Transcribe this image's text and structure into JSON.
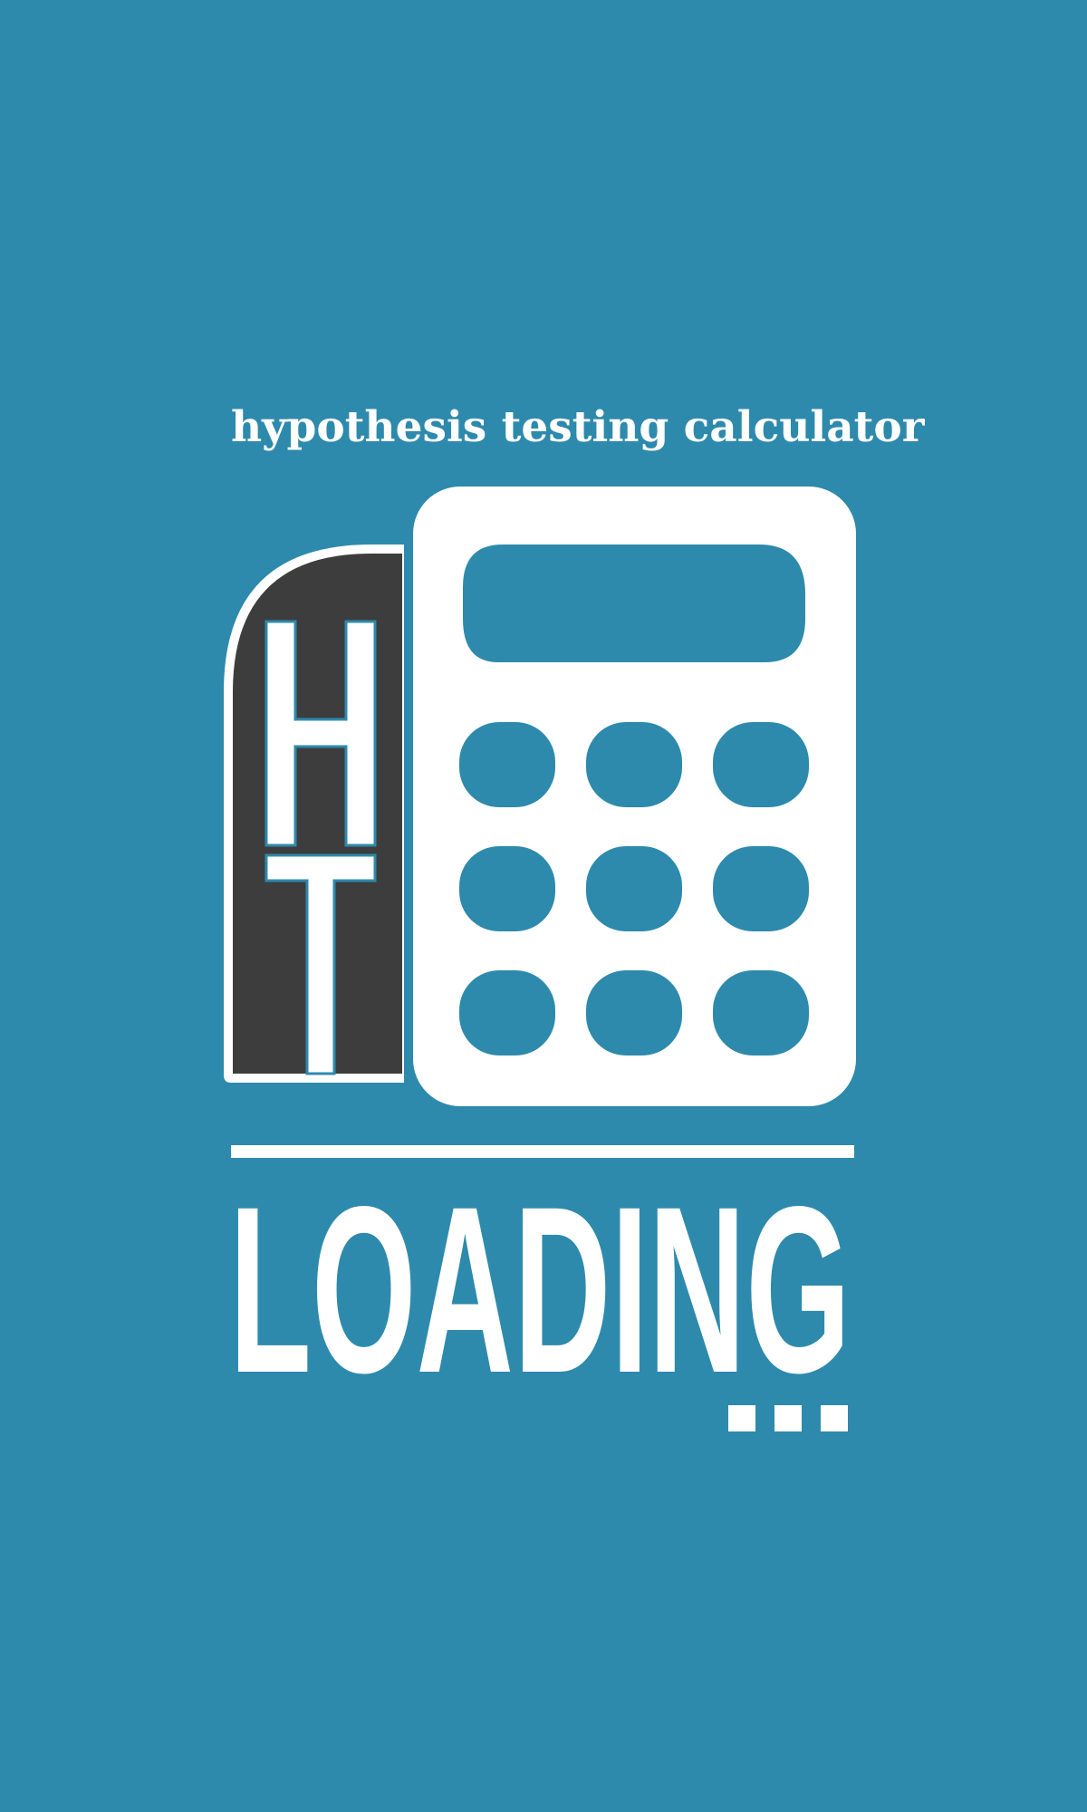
{
  "app": {
    "title": "hypothesis testing calculator"
  },
  "logo": {
    "monogram_top": "H",
    "monogram_bottom": "T",
    "keypad_rows": 3,
    "keypad_cols": 3
  },
  "status": {
    "loading_label": "LOADING",
    "ellipsis": "..."
  },
  "colors": {
    "background": "#2d8aac",
    "foreground": "#ffffff",
    "tab_fill": "#3d3d3d"
  },
  "icons": {
    "logo": "calculator-icon"
  }
}
